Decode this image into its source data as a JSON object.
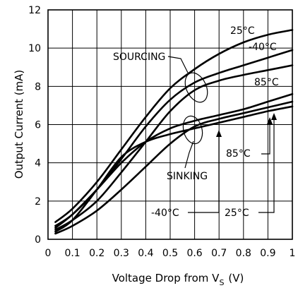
{
  "chart_data": {
    "type": "line",
    "xlabel": "Voltage Drop from V",
    "xlabel_subscript": "S",
    "xlabel_unit": "(V)",
    "ylabel": "Output Current (mA)",
    "xlim": [
      0,
      1
    ],
    "ylim": [
      0,
      12
    ],
    "x_ticks": [
      "0",
      "0.1",
      "0.2",
      "0.3",
      "0.4",
      "0.5",
      "0.6",
      "0.7",
      "0.8",
      "0.9",
      "1"
    ],
    "y_ticks": [
      "0",
      "2",
      "4",
      "6",
      "8",
      "10",
      "12"
    ],
    "grid": true,
    "series": [
      {
        "name": "SOURCING 25°C",
        "x": [
          0.03,
          0.1,
          0.2,
          0.3,
          0.4,
          0.5,
          0.6,
          0.7,
          0.8,
          0.9,
          1.0
        ],
        "y": [
          0.9,
          1.6,
          3.0,
          4.7,
          6.4,
          7.9,
          8.9,
          9.7,
          10.3,
          10.7,
          10.95
        ]
      },
      {
        "name": "SOURCING -40°C",
        "x": [
          0.03,
          0.1,
          0.2,
          0.3,
          0.4,
          0.5,
          0.6,
          0.7,
          0.8,
          0.9,
          1.0
        ],
        "y": [
          0.7,
          1.3,
          2.6,
          4.2,
          5.9,
          7.3,
          8.2,
          8.7,
          9.1,
          9.5,
          9.9
        ]
      },
      {
        "name": "SOURCING 85°C",
        "x": [
          0.03,
          0.1,
          0.2,
          0.3,
          0.4,
          0.5,
          0.6,
          0.7,
          0.8,
          0.9,
          1.0
        ],
        "y": [
          0.5,
          1.0,
          2.0,
          3.5,
          5.1,
          6.7,
          7.8,
          8.3,
          8.6,
          8.85,
          9.1
        ]
      },
      {
        "name": "SINKING 25°C",
        "x": [
          0.03,
          0.1,
          0.2,
          0.3,
          0.4,
          0.5,
          0.6,
          0.7,
          0.8,
          0.9,
          1.0
        ],
        "y": [
          0.6,
          1.3,
          2.6,
          4.0,
          5.1,
          5.8,
          6.2,
          6.5,
          6.8,
          7.2,
          7.6
        ]
      },
      {
        "name": "SINKING -40°C",
        "x": [
          0.03,
          0.1,
          0.2,
          0.3,
          0.4,
          0.5,
          0.6,
          0.7,
          0.8,
          0.9,
          1.0
        ],
        "y": [
          0.4,
          1.0,
          2.6,
          4.3,
          5.1,
          5.5,
          5.8,
          6.1,
          6.4,
          6.7,
          6.95
        ]
      },
      {
        "name": "SINKING 85°C",
        "x": [
          0.03,
          0.1,
          0.2,
          0.3,
          0.4,
          0.5,
          0.6,
          0.7,
          0.8,
          0.9,
          1.0
        ],
        "y": [
          0.3,
          0.7,
          1.5,
          2.6,
          3.8,
          5.0,
          5.9,
          6.3,
          6.6,
          6.9,
          7.2
        ]
      }
    ],
    "annotations": {
      "sourcing": "SOURCING",
      "sinking": "SINKING",
      "t25_top": "25°C",
      "t40_top": "-40°C",
      "t85_top": "85°C",
      "t85_bottom": "85°C",
      "t40_bottom": "-40°C",
      "t25_bottom": "25°C"
    }
  }
}
